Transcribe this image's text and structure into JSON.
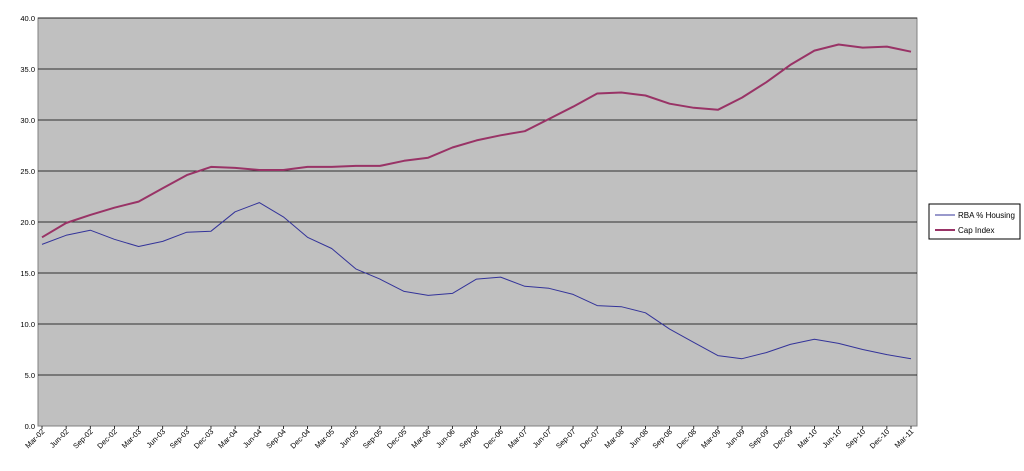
{
  "chart_data": {
    "type": "line",
    "title": "",
    "xlabel": "",
    "ylabel": "",
    "ylim": [
      0,
      40
    ],
    "yticks": [
      "0.0",
      "5.0",
      "10.0",
      "15.0",
      "20.0",
      "25.0",
      "30.0",
      "35.0",
      "40.0"
    ],
    "x_tick_labels": [
      "Mar-02",
      "Jun-02",
      "Sep-02",
      "Dec-02",
      "Mar-03",
      "Jun-03",
      "Sep-03",
      "Dec-03",
      "Mar-04",
      "Jun-04",
      "Sep-04",
      "Dec-04",
      "Mar-05",
      "Jun-05",
      "Sep-05",
      "Dec-05",
      "Mar-06",
      "Jun-06",
      "Sep-06",
      "Dec-06",
      "Mar-07",
      "Jun-07",
      "Sep-07",
      "Dec-07",
      "Mar-08",
      "Jun-08",
      "Sep-08",
      "Dec-08",
      "Mar-09",
      "Jun-09",
      "Sep-09",
      "Dec-09",
      "Mar-10",
      "Jun-10",
      "Sep-10",
      "Dec-10",
      "Mar-11"
    ],
    "grid": true,
    "legend_position": "right",
    "plot_background": "#c0c0c0",
    "series": [
      {
        "name": "RBA % Housing",
        "color": "#333399",
        "values": [
          17.8,
          18.7,
          19.2,
          18.3,
          17.6,
          18.1,
          19.0,
          19.1,
          21.0,
          21.9,
          20.5,
          18.5,
          17.4,
          15.4,
          14.4,
          13.2,
          12.8,
          13.0,
          14.4,
          14.6,
          13.7,
          13.5,
          12.9,
          11.8,
          11.7,
          11.1,
          9.5,
          8.2,
          6.9,
          6.6,
          7.2,
          8.0,
          8.5,
          8.1,
          7.5,
          7.0,
          6.6
        ]
      },
      {
        "name": "Cap Index",
        "color": "#993366",
        "values": [
          18.5,
          19.9,
          20.7,
          21.4,
          22.0,
          23.3,
          24.6,
          25.4,
          25.3,
          25.1,
          25.1,
          25.4,
          25.4,
          25.5,
          25.5,
          26.0,
          26.3,
          27.3,
          28.0,
          28.5,
          28.9,
          30.1,
          31.3,
          32.6,
          32.7,
          32.4,
          31.6,
          31.2,
          31.0,
          32.2,
          33.7,
          35.4,
          36.8,
          37.4,
          37.1,
          37.2,
          36.7
        ]
      }
    ]
  }
}
